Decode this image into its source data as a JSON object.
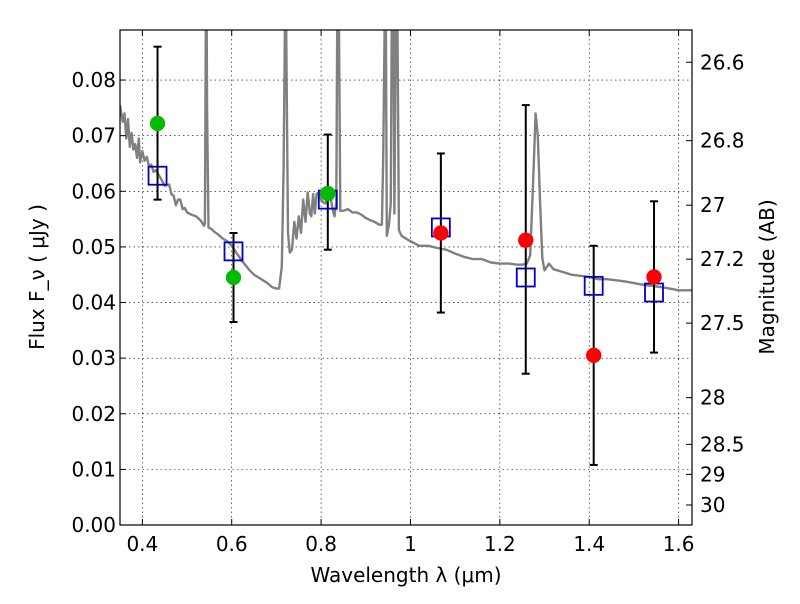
{
  "chart_data": {
    "type": "scatter",
    "xlabel": "Wavelength  λ (μm)",
    "ylabel": "Flux  F_ν  ( μJy )",
    "ylabel_right": "Magnitude (AB)",
    "xlim": [
      0.35,
      1.63
    ],
    "ylim": [
      0.0,
      0.089
    ],
    "grid": true,
    "x_ticks": [
      0.4,
      0.6,
      0.8,
      1.0,
      1.2,
      1.4,
      1.6
    ],
    "x_tick_labels": [
      "0.4",
      "0.6",
      "0.8",
      "1",
      "1.2",
      "1.4",
      "1.6"
    ],
    "y_ticks": [
      0.0,
      0.01,
      0.02,
      0.03,
      0.04,
      0.05,
      0.06,
      0.07,
      0.08
    ],
    "y_tick_labels": [
      "0.00",
      "0.01",
      "0.02",
      "0.03",
      "0.04",
      "0.05",
      "0.06",
      "0.07",
      "0.08"
    ],
    "right_ticks": [
      {
        "flux": 0.0832,
        "label": "26.6"
      },
      {
        "flux": 0.0691,
        "label": "26.8"
      },
      {
        "flux": 0.0575,
        "label": "27"
      },
      {
        "flux": 0.0478,
        "label": "27.2"
      },
      {
        "flux": 0.0363,
        "label": "27.5"
      },
      {
        "flux": 0.0229,
        "label": "28"
      },
      {
        "flux": 0.0145,
        "label": "28.5"
      },
      {
        "flux": 0.0091,
        "label": "29"
      },
      {
        "flux": 0.0036,
        "label": "30"
      }
    ],
    "series": [
      {
        "kind": "line",
        "color": "#808080",
        "points": [
          [
            0.35,
            0.0755
          ],
          [
            0.356,
            0.0725
          ],
          [
            0.36,
            0.074
          ],
          [
            0.364,
            0.0695
          ],
          [
            0.368,
            0.073
          ],
          [
            0.372,
            0.068
          ],
          [
            0.376,
            0.0705
          ],
          [
            0.38,
            0.0675
          ],
          [
            0.384,
            0.0685
          ],
          [
            0.388,
            0.066
          ],
          [
            0.392,
            0.0695
          ],
          [
            0.395,
            0.0652
          ],
          [
            0.4,
            0.0672
          ],
          [
            0.405,
            0.0655
          ],
          [
            0.41,
            0.0662
          ],
          [
            0.415,
            0.0645
          ],
          [
            0.42,
            0.0648
          ],
          [
            0.425,
            0.0635
          ],
          [
            0.43,
            0.0638
          ],
          [
            0.44,
            0.0625
          ],
          [
            0.45,
            0.061
          ],
          [
            0.46,
            0.0612
          ],
          [
            0.465,
            0.0595
          ],
          [
            0.47,
            0.0592
          ],
          [
            0.475,
            0.0575
          ],
          [
            0.48,
            0.0585
          ],
          [
            0.485,
            0.0585
          ],
          [
            0.49,
            0.0568
          ],
          [
            0.495,
            0.057
          ],
          [
            0.5,
            0.0562
          ],
          [
            0.51,
            0.0558
          ],
          [
            0.52,
            0.0555
          ],
          [
            0.53,
            0.0548
          ],
          [
            0.535,
            0.0542
          ],
          [
            0.538,
            0.0538
          ],
          [
            0.54,
            0.0542
          ],
          [
            0.541,
            0.073
          ],
          [
            0.542,
            0.089
          ],
          [
            0.544,
            0.089
          ],
          [
            0.545,
            0.0742
          ],
          [
            0.548,
            0.0535
          ],
          [
            0.555,
            0.0532
          ],
          [
            0.56,
            0.0528
          ],
          [
            0.57,
            0.0522
          ],
          [
            0.58,
            0.0515
          ],
          [
            0.59,
            0.051
          ],
          [
            0.6,
            0.0502
          ],
          [
            0.61,
            0.049
          ],
          [
            0.62,
            0.0478
          ],
          [
            0.63,
            0.0468
          ],
          [
            0.64,
            0.0458
          ],
          [
            0.65,
            0.045
          ],
          [
            0.66,
            0.0445
          ],
          [
            0.67,
            0.044
          ],
          [
            0.68,
            0.0435
          ],
          [
            0.69,
            0.0428
          ],
          [
            0.7,
            0.0425
          ],
          [
            0.706,
            0.0425
          ],
          [
            0.712,
            0.0465
          ],
          [
            0.716,
            0.064
          ],
          [
            0.719,
            0.089
          ],
          [
            0.722,
            0.089
          ],
          [
            0.726,
            0.0525
          ],
          [
            0.73,
            0.049
          ],
          [
            0.735,
            0.0495
          ],
          [
            0.74,
            0.0545
          ],
          [
            0.745,
            0.0515
          ],
          [
            0.75,
            0.0555
          ],
          [
            0.755,
            0.0525
          ],
          [
            0.76,
            0.0585
          ],
          [
            0.765,
            0.0545
          ],
          [
            0.77,
            0.0598
          ],
          [
            0.775,
            0.056
          ],
          [
            0.778,
            0.0555
          ],
          [
            0.782,
            0.0595
          ],
          [
            0.786,
            0.056
          ],
          [
            0.79,
            0.0595
          ],
          [
            0.795,
            0.0598
          ],
          [
            0.8,
            0.0585
          ],
          [
            0.805,
            0.058
          ],
          [
            0.81,
            0.0578
          ],
          [
            0.815,
            0.0592
          ],
          [
            0.82,
            0.0598
          ],
          [
            0.825,
            0.057
          ],
          [
            0.83,
            0.0555
          ],
          [
            0.834,
            0.058
          ],
          [
            0.836,
            0.089
          ],
          [
            0.84,
            0.089
          ],
          [
            0.843,
            0.0565
          ],
          [
            0.85,
            0.0565
          ],
          [
            0.86,
            0.0568
          ],
          [
            0.87,
            0.0562
          ],
          [
            0.88,
            0.0562
          ],
          [
            0.89,
            0.0558
          ],
          [
            0.9,
            0.0552
          ],
          [
            0.91,
            0.0548
          ],
          [
            0.92,
            0.0545
          ],
          [
            0.93,
            0.054
          ],
          [
            0.936,
            0.054
          ],
          [
            0.939,
            0.066
          ],
          [
            0.942,
            0.089
          ],
          [
            0.945,
            0.089
          ],
          [
            0.947,
            0.052
          ],
          [
            0.952,
            0.054
          ],
          [
            0.956,
            0.058
          ],
          [
            0.958,
            0.089
          ],
          [
            0.962,
            0.089
          ],
          [
            0.964,
            0.056
          ],
          [
            0.967,
            0.089
          ],
          [
            0.971,
            0.089
          ],
          [
            0.974,
            0.053
          ],
          [
            0.98,
            0.052
          ],
          [
            0.99,
            0.0515
          ],
          [
            1.0,
            0.051
          ],
          [
            1.02,
            0.0502
          ],
          [
            1.04,
            0.0502
          ],
          [
            1.06,
            0.0498
          ],
          [
            1.08,
            0.0495
          ],
          [
            1.1,
            0.0488
          ],
          [
            1.12,
            0.0482
          ],
          [
            1.14,
            0.0478
          ],
          [
            1.16,
            0.0478
          ],
          [
            1.18,
            0.0472
          ],
          [
            1.2,
            0.047
          ],
          [
            1.22,
            0.047
          ],
          [
            1.24,
            0.0468
          ],
          [
            1.25,
            0.0468
          ],
          [
            1.26,
            0.047
          ],
          [
            1.268,
            0.0485
          ],
          [
            1.275,
            0.063
          ],
          [
            1.28,
            0.074
          ],
          [
            1.285,
            0.07
          ],
          [
            1.29,
            0.058
          ],
          [
            1.295,
            0.048
          ],
          [
            1.3,
            0.0458
          ],
          [
            1.31,
            0.047
          ],
          [
            1.32,
            0.046
          ],
          [
            1.34,
            0.0455
          ],
          [
            1.36,
            0.045
          ],
          [
            1.38,
            0.0448
          ],
          [
            1.4,
            0.0446
          ],
          [
            1.42,
            0.0442
          ],
          [
            1.44,
            0.0442
          ],
          [
            1.46,
            0.044
          ],
          [
            1.48,
            0.0438
          ],
          [
            1.5,
            0.0435
          ],
          [
            1.52,
            0.0432
          ],
          [
            1.54,
            0.043
          ],
          [
            1.56,
            0.0428
          ],
          [
            1.58,
            0.0425
          ],
          [
            1.6,
            0.0422
          ],
          [
            1.63,
            0.0422
          ]
        ]
      },
      {
        "kind": "square-marker",
        "color": "#0000cc",
        "points": [
          [
            0.434,
            0.0628
          ],
          [
            0.604,
            0.0492
          ],
          [
            0.815,
            0.0585
          ],
          [
            1.068,
            0.0535
          ],
          [
            1.258,
            0.0445
          ],
          [
            1.41,
            0.043
          ],
          [
            1.545,
            0.0418
          ]
        ]
      },
      {
        "kind": "circle-marker",
        "color": "#00bb00",
        "points": [
          [
            0.434,
            0.0722
          ],
          [
            0.604,
            0.0445
          ],
          [
            0.815,
            0.0596
          ]
        ]
      },
      {
        "kind": "circle-marker",
        "color": "#ff0000",
        "points": [
          [
            1.068,
            0.0525
          ],
          [
            1.258,
            0.0512
          ],
          [
            1.41,
            0.0305
          ],
          [
            1.545,
            0.0446
          ]
        ]
      }
    ],
    "error_bars": [
      {
        "x": 0.434,
        "low": 0.0585,
        "high": 0.086
      },
      {
        "x": 0.604,
        "low": 0.0365,
        "high": 0.0525
      },
      {
        "x": 0.815,
        "low": 0.0495,
        "high": 0.0702
      },
      {
        "x": 1.068,
        "low": 0.0382,
        "high": 0.0668
      },
      {
        "x": 1.258,
        "low": 0.0272,
        "high": 0.0755
      },
      {
        "x": 1.41,
        "low": 0.0108,
        "high": 0.0502
      },
      {
        "x": 1.545,
        "low": 0.031,
        "high": 0.0582
      }
    ]
  }
}
